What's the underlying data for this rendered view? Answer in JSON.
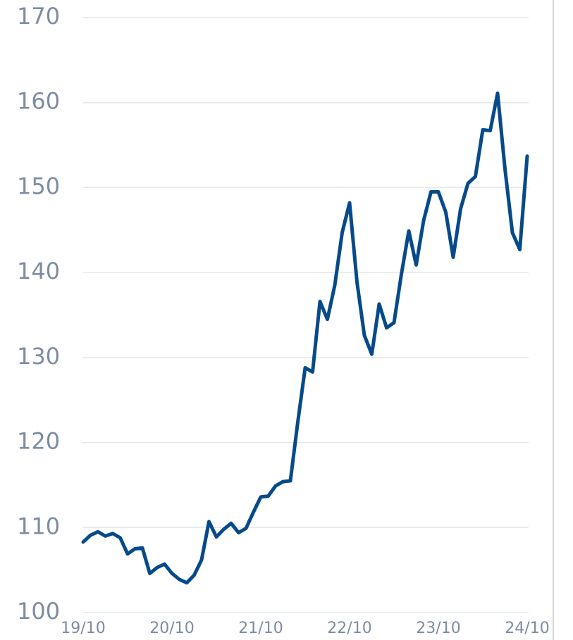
{
  "chart_data": {
    "type": "line",
    "categories": [
      "19/10",
      null,
      null,
      null,
      null,
      null,
      null,
      null,
      null,
      null,
      null,
      null,
      "20/10",
      null,
      null,
      null,
      null,
      null,
      null,
      null,
      null,
      null,
      null,
      null,
      "21/10",
      null,
      null,
      null,
      null,
      null,
      null,
      null,
      null,
      null,
      null,
      null,
      "22/10",
      null,
      null,
      null,
      null,
      null,
      null,
      null,
      null,
      null,
      null,
      null,
      "23/10",
      null,
      null,
      null,
      null,
      null,
      null,
      null,
      null,
      null,
      null,
      null,
      "24/10"
    ],
    "series": [
      {
        "color": "#064a8a",
        "values": [
          108.3,
          109.1,
          109.5,
          109.0,
          109.3,
          108.8,
          106.9,
          107.5,
          107.6,
          104.6,
          105.3,
          105.7,
          104.6,
          103.9,
          103.5,
          104.4,
          106.2,
          110.7,
          108.9,
          109.8,
          110.5,
          109.4,
          109.9,
          111.8,
          113.6,
          113.7,
          114.9,
          115.4,
          115.5,
          122.4,
          128.8,
          128.3,
          136.6,
          134.5,
          138.5,
          144.7,
          148.2,
          138.9,
          132.6,
          130.4,
          136.3,
          133.5,
          134.1,
          139.8,
          144.9,
          140.9,
          146.1,
          149.5,
          149.5,
          147.1,
          141.8,
          147.5,
          150.5,
          151.3,
          156.8,
          156.7,
          161.1,
          152.2,
          144.7,
          142.7,
          153.7
        ]
      }
    ],
    "ylim": [
      100,
      170
    ],
    "yticks": [
      100,
      110,
      120,
      130,
      140,
      150,
      160,
      170
    ],
    "grid": true
  }
}
